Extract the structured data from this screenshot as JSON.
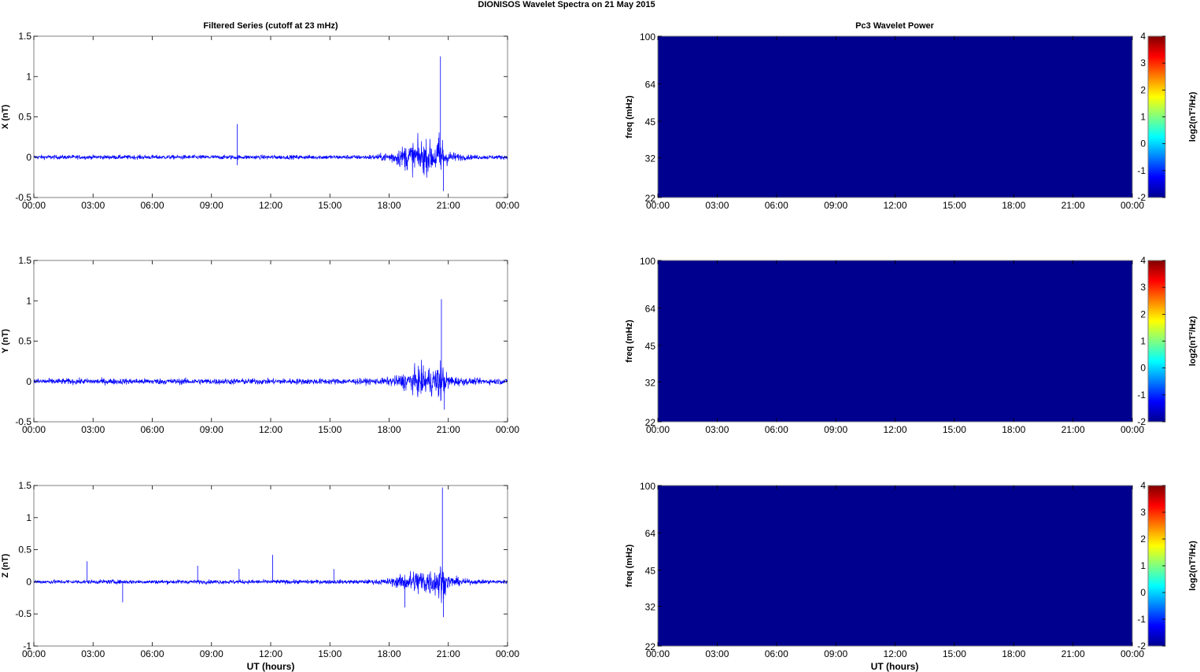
{
  "figure": {
    "title": "DIONISOS Wavelet Spectra on 21 May       2015",
    "left_column_title": "Filtered Series (cutoff at 23 mHz)",
    "right_column_title": "Pc3 Wavelet Power",
    "xlabel": "UT (hours)"
  },
  "colors": {
    "trace": "#0000ff",
    "background_power": "#00008f",
    "colormap": [
      "#00008f",
      "#0000ff",
      "#0080ff",
      "#00ffff",
      "#80ff80",
      "#ffff00",
      "#ff8000",
      "#ff0000",
      "#800000"
    ]
  },
  "chart_data": [
    {
      "type": "line",
      "component": "X",
      "ylabel": "X (nT)",
      "ylim": [
        -0.5,
        1.5
      ],
      "yticks": [
        "-0.5",
        "0",
        "0.5",
        "1",
        "1.5"
      ],
      "xticks": [
        "00:00",
        "03:00",
        "06:00",
        "09:00",
        "12:00",
        "15:00",
        "18:00",
        "21:00",
        "00:00"
      ],
      "xlim_hours": [
        0,
        24
      ],
      "noise_amplitude": 0.05,
      "events": [
        {
          "hour": 19.6,
          "width": 1.3,
          "amp": 0.35
        },
        {
          "hour": 20.6,
          "width": 0.2,
          "amp": 0.35
        }
      ],
      "spikes": [
        {
          "hour": 10.3,
          "value": 0.41
        },
        {
          "hour": 10.3,
          "value": -0.1
        },
        {
          "hour": 20.6,
          "value": 1.25
        },
        {
          "hour": 20.75,
          "value": -0.42
        }
      ]
    },
    {
      "type": "line",
      "component": "Y",
      "ylabel": "Y (nT)",
      "ylim": [
        -0.5,
        1.5
      ],
      "yticks": [
        "-0.5",
        "0",
        "0.5",
        "1",
        "1.5"
      ],
      "xticks": [
        "00:00",
        "03:00",
        "06:00",
        "09:00",
        "12:00",
        "15:00",
        "18:00",
        "21:00",
        "00:00"
      ],
      "xlim_hours": [
        0,
        24
      ],
      "noise_amplitude": 0.07,
      "events": [
        {
          "hour": 19.8,
          "width": 1.2,
          "amp": 0.28
        },
        {
          "hour": 20.6,
          "width": 0.2,
          "amp": 0.25
        }
      ],
      "spikes": [
        {
          "hour": 20.65,
          "value": 1.02
        },
        {
          "hour": 20.8,
          "value": -0.35
        }
      ]
    },
    {
      "type": "line",
      "component": "Z",
      "ylabel": "Z (nT)",
      "ylim": [
        -1,
        1.5
      ],
      "yticks": [
        "-1",
        "-0.5",
        "0",
        "0.5",
        "1",
        "1.5"
      ],
      "xticks": [
        "00:00",
        "03:00",
        "06:00",
        "09:00",
        "12:00",
        "15:00",
        "18:00",
        "21:00",
        "00:00"
      ],
      "xlim_hours": [
        0,
        24
      ],
      "noise_amplitude": 0.06,
      "events": [
        {
          "hour": 19.8,
          "width": 1.3,
          "amp": 0.35
        },
        {
          "hour": 20.6,
          "width": 0.2,
          "amp": 0.3
        }
      ],
      "spikes": [
        {
          "hour": 2.7,
          "value": 0.32
        },
        {
          "hour": 4.5,
          "value": -0.32
        },
        {
          "hour": 8.3,
          "value": 0.25
        },
        {
          "hour": 10.4,
          "value": 0.2
        },
        {
          "hour": 12.1,
          "value": 0.42
        },
        {
          "hour": 15.2,
          "value": 0.2
        },
        {
          "hour": 18.8,
          "value": -0.4
        },
        {
          "hour": 20.7,
          "value": 1.47
        },
        {
          "hour": 20.75,
          "value": -0.55
        }
      ]
    },
    {
      "type": "heatmap",
      "component": "X",
      "title": "Pc3 Wavelet Power",
      "ylabel": "freq (mHz)",
      "yticks": [
        "100",
        "64",
        "45",
        "32",
        "22"
      ],
      "ylim_mhz": [
        22,
        100
      ],
      "xticks": [
        "00:00",
        "03:00",
        "06:00",
        "09:00",
        "12:00",
        "15:00",
        "18:00",
        "21:00",
        "00:00"
      ],
      "colorbar_label": "log2(nT²/Hz)",
      "colorbar_ticks": [
        "4",
        "3",
        "2",
        "1",
        "0",
        "-1",
        "-2"
      ],
      "clim": [
        -2,
        4
      ],
      "power_value": -2
    },
    {
      "type": "heatmap",
      "component": "Y",
      "ylabel": "freq (mHz)",
      "yticks": [
        "100",
        "64",
        "45",
        "32",
        "22"
      ],
      "ylim_mhz": [
        22,
        100
      ],
      "xticks": [
        "00:00",
        "03:00",
        "06:00",
        "09:00",
        "12:00",
        "15:00",
        "18:00",
        "21:00",
        "00:00"
      ],
      "colorbar_label": "log2(nT²/Hz)",
      "colorbar_ticks": [
        "4",
        "3",
        "2",
        "1",
        "0",
        "-1",
        "-2"
      ],
      "clim": [
        -2,
        4
      ],
      "power_value": -2
    },
    {
      "type": "heatmap",
      "component": "Z",
      "ylabel": "freq (mHz)",
      "yticks": [
        "100",
        "64",
        "45",
        "32",
        "22"
      ],
      "ylim_mhz": [
        22,
        100
      ],
      "xticks": [
        "00:00",
        "03:00",
        "06:00",
        "09:00",
        "12:00",
        "15:00",
        "18:00",
        "21:00",
        "00:00"
      ],
      "colorbar_label": "log2(nT²/Hz)",
      "colorbar_ticks": [
        "4",
        "3",
        "2",
        "1",
        "0",
        "-1",
        "-2"
      ],
      "clim": [
        -2,
        4
      ],
      "power_value": -2
    }
  ]
}
